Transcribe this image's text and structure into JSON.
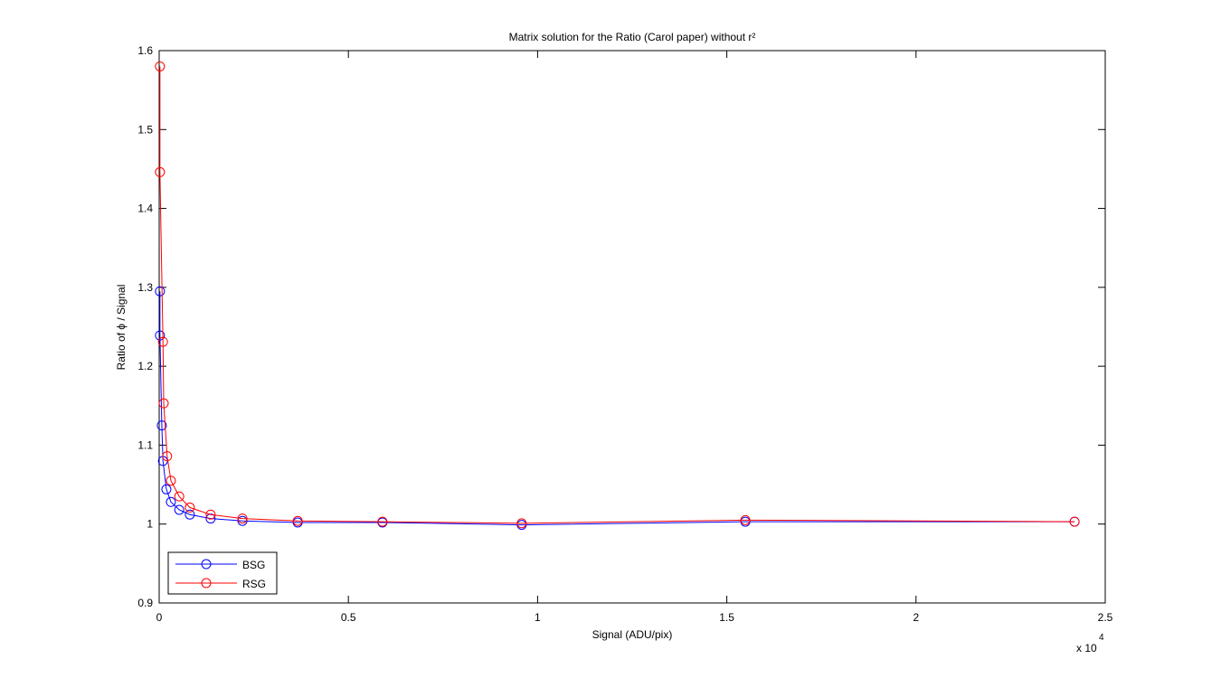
{
  "chart_data": {
    "type": "line",
    "title": "Matrix solution for the Ratio (Carol paper) without r²",
    "x_label": "Signal (ADU/pix)",
    "y_label": "Ratio of ϕ / Signal",
    "x_multiplier": "x 10",
    "x_multiplier_exponent": "4",
    "xlim": [
      0,
      2.5
    ],
    "xticks": [
      0,
      0.5,
      1,
      1.5,
      2,
      2.5
    ],
    "ylim": [
      0.9,
      1.6
    ],
    "yticks": [
      0.9,
      1,
      1.1,
      1.2,
      1.3,
      1.4,
      1.5,
      1.6
    ],
    "grid": false,
    "legend": "lower left",
    "series": [
      {
        "name": "BSG",
        "color": "#0000ff",
        "x": [
          0.002,
          0.002,
          0.007,
          0.01,
          0.019,
          0.031,
          0.053,
          0.081,
          0.136,
          0.22,
          0.366,
          0.59,
          0.958,
          1.549,
          2.419
        ],
        "values": [
          1.295,
          1.239,
          1.125,
          1.08,
          1.044,
          1.028,
          1.018,
          1.012,
          1.007,
          1.004,
          1.002,
          1.002,
          0.999,
          1.003,
          1.003
        ]
      },
      {
        "name": "RSG",
        "color": "#ff0000",
        "x": [
          0.002,
          0.002,
          0.01,
          0.012,
          0.021,
          0.031,
          0.053,
          0.081,
          0.136,
          0.22,
          0.366,
          0.59,
          0.958,
          1.549,
          2.419
        ],
        "values": [
          1.58,
          1.446,
          1.231,
          1.153,
          1.086,
          1.055,
          1.035,
          1.021,
          1.012,
          1.007,
          1.004,
          1.003,
          1.001,
          1.005,
          1.003
        ]
      }
    ]
  }
}
